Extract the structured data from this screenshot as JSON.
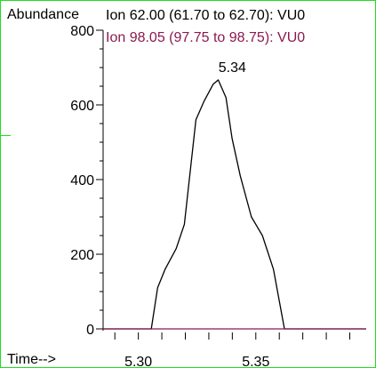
{
  "chart_data": {
    "type": "line",
    "ylabel": "Abundance",
    "xlabel": "Time-->",
    "ylim": [
      0,
      800
    ],
    "xlim": [
      5.285,
      5.397
    ],
    "y_ticks": [
      "0",
      "200",
      "400",
      "600",
      "800"
    ],
    "x_ticks": [
      "5.30",
      "5.35"
    ],
    "x_tick_values": [
      5.3,
      5.35
    ],
    "x_minor_ticks": [
      5.29,
      5.3,
      5.31,
      5.32,
      5.33,
      5.34,
      5.35,
      5.36,
      5.37,
      5.38,
      5.39
    ],
    "series": [
      {
        "name": "Ion  62.00 (61.70 to 62.70): VU0",
        "color": "#000000",
        "x": [
          5.285,
          5.3055,
          5.3082,
          5.3114,
          5.3161,
          5.3196,
          5.3245,
          5.328,
          5.3318,
          5.334,
          5.3373,
          5.3399,
          5.3434,
          5.3481,
          5.3528,
          5.3575,
          5.3622,
          5.3648,
          5.397
        ],
        "y": [
          0,
          0,
          110,
          160,
          215,
          280,
          560,
          610,
          655,
          667,
          620,
          510,
          410,
          300,
          250,
          160,
          0,
          0,
          0
        ]
      },
      {
        "name": "Ion  98.05 (97.75 to 98.75): VU0",
        "color": "#8b1a4f",
        "x": [
          5.285,
          5.397
        ],
        "y": [
          0,
          0
        ]
      }
    ],
    "annotations": [
      {
        "text": "5.34",
        "x": 5.34,
        "y": 667
      }
    ]
  }
}
